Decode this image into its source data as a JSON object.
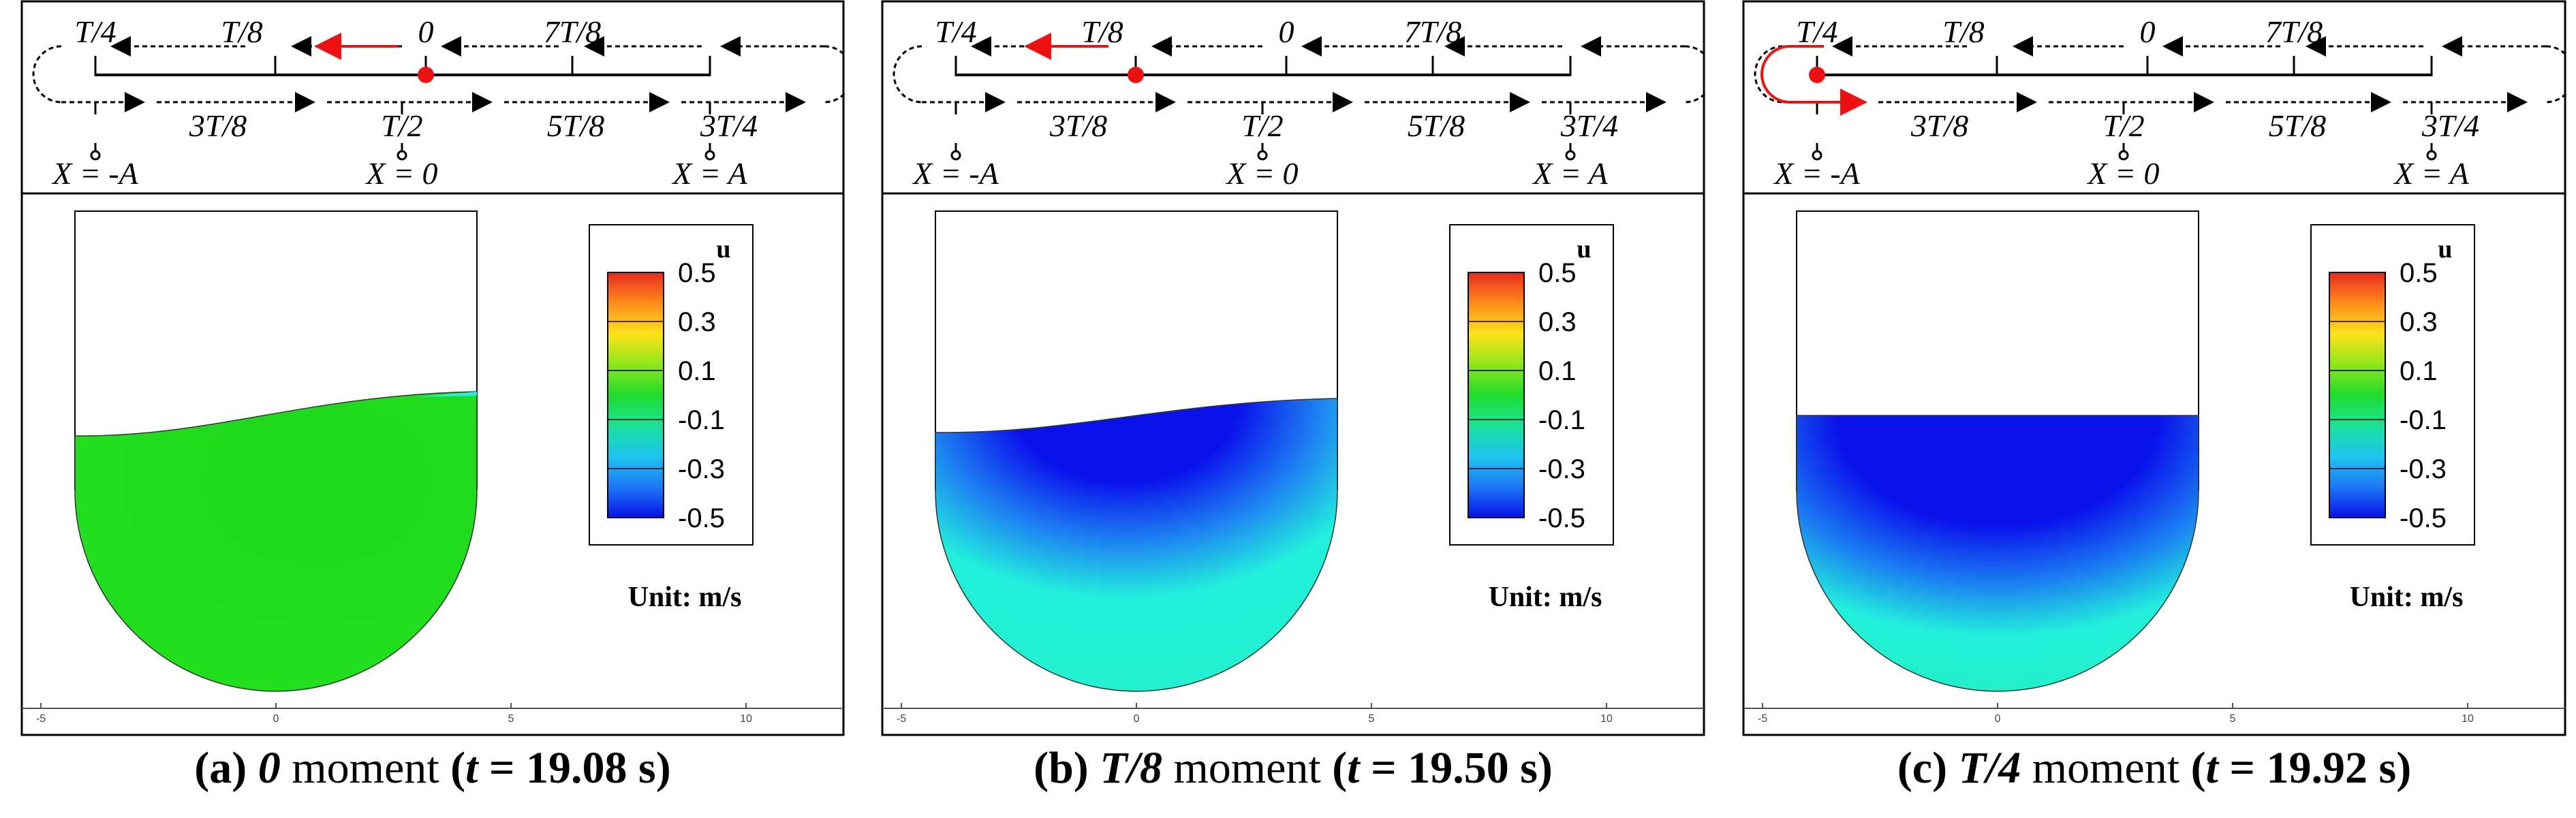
{
  "figure": {
    "panels": [
      {
        "id": "a",
        "caption": {
          "letter": "(a)",
          "phase": "0",
          "word": "moment",
          "time_prefix": "(",
          "t_symbol": "t",
          "equals": " = ",
          "time_value": "19.08",
          "time_unit": " s",
          "time_suffix": ")"
        },
        "marker_phase": "0",
        "highlight_label": "0",
        "field": "green"
      },
      {
        "id": "b",
        "caption": {
          "letter": "(b)",
          "phase": "T/8",
          "word": "moment",
          "time_prefix": "(",
          "t_symbol": "t",
          "equals": " = ",
          "time_value": "19.50",
          "time_unit": " s",
          "time_suffix": ")"
        },
        "marker_phase": "T/8",
        "highlight_label": "T/8",
        "field": "blue-top"
      },
      {
        "id": "c",
        "caption": {
          "letter": "(c)",
          "phase": "T/4",
          "word": "moment",
          "time_prefix": "(",
          "t_symbol": "t",
          "equals": " = ",
          "time_value": "19.92",
          "time_unit": " s",
          "time_suffix": ")"
        },
        "marker_phase": "T/4",
        "highlight_label": "T/4",
        "field": "blue-full"
      }
    ],
    "timeline": {
      "top_labels": [
        "T/4",
        "T/8",
        "0",
        "7T/8"
      ],
      "bottom_labels": [
        "3T/8",
        "T/2",
        "5T/8",
        "3T/4"
      ],
      "positions": [
        "X = -A",
        "X = 0",
        "X = A"
      ]
    },
    "legend": {
      "title": "u",
      "levels": [
        "0.5",
        "0.3",
        "0.1",
        "-0.1",
        "-0.3",
        "-0.5"
      ],
      "colors": [
        "#e8281e",
        "#ff8c1a",
        "#ffe31a",
        "#8fe61a",
        "#1fdc2c",
        "#19e39a",
        "#1ec4f0",
        "#1d78f5",
        "#0a10e8"
      ]
    },
    "unit_label": "Unit: m/s",
    "axis_ticks": [
      "-5",
      "0",
      "5",
      "10"
    ],
    "colors": {
      "marker": "#ee1111",
      "green_fluid": "#22e01e",
      "blue_fluid": "#0a12ec",
      "cyan_fluid": "#22f0dc"
    }
  }
}
